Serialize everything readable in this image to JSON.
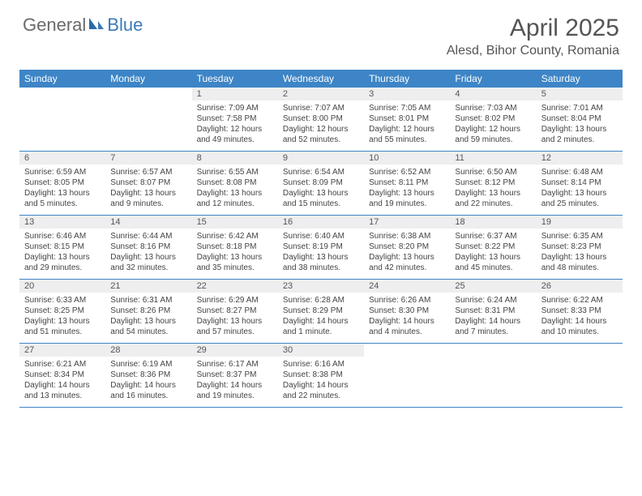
{
  "header": {
    "logo_general": "General",
    "logo_blue": "Blue",
    "month_title": "April 2025",
    "location": "Alesd, Bihor County, Romania"
  },
  "styling": {
    "header_bg": "#3d85c6",
    "header_text": "#ffffff",
    "daynum_bg": "#eeeeee",
    "text_color": "#444444",
    "logo_gray": "#6a6a6a",
    "logo_blue": "#3a7ab8",
    "row_border": "#3d85c6",
    "page_bg": "#ffffff",
    "weekday_fontsize": 12,
    "daynum_fontsize": 11,
    "body_fontsize": 10,
    "title_fontsize": 30,
    "location_fontsize": 16
  },
  "weekdays": [
    "Sunday",
    "Monday",
    "Tuesday",
    "Wednesday",
    "Thursday",
    "Friday",
    "Saturday"
  ],
  "weeks": [
    [
      {
        "num": "",
        "sunrise": "",
        "sunset": "",
        "daylight1": "",
        "daylight2": ""
      },
      {
        "num": "",
        "sunrise": "",
        "sunset": "",
        "daylight1": "",
        "daylight2": ""
      },
      {
        "num": "1",
        "sunrise": "Sunrise: 7:09 AM",
        "sunset": "Sunset: 7:58 PM",
        "daylight1": "Daylight: 12 hours",
        "daylight2": "and 49 minutes."
      },
      {
        "num": "2",
        "sunrise": "Sunrise: 7:07 AM",
        "sunset": "Sunset: 8:00 PM",
        "daylight1": "Daylight: 12 hours",
        "daylight2": "and 52 minutes."
      },
      {
        "num": "3",
        "sunrise": "Sunrise: 7:05 AM",
        "sunset": "Sunset: 8:01 PM",
        "daylight1": "Daylight: 12 hours",
        "daylight2": "and 55 minutes."
      },
      {
        "num": "4",
        "sunrise": "Sunrise: 7:03 AM",
        "sunset": "Sunset: 8:02 PM",
        "daylight1": "Daylight: 12 hours",
        "daylight2": "and 59 minutes."
      },
      {
        "num": "5",
        "sunrise": "Sunrise: 7:01 AM",
        "sunset": "Sunset: 8:04 PM",
        "daylight1": "Daylight: 13 hours",
        "daylight2": "and 2 minutes."
      }
    ],
    [
      {
        "num": "6",
        "sunrise": "Sunrise: 6:59 AM",
        "sunset": "Sunset: 8:05 PM",
        "daylight1": "Daylight: 13 hours",
        "daylight2": "and 5 minutes."
      },
      {
        "num": "7",
        "sunrise": "Sunrise: 6:57 AM",
        "sunset": "Sunset: 8:07 PM",
        "daylight1": "Daylight: 13 hours",
        "daylight2": "and 9 minutes."
      },
      {
        "num": "8",
        "sunrise": "Sunrise: 6:55 AM",
        "sunset": "Sunset: 8:08 PM",
        "daylight1": "Daylight: 13 hours",
        "daylight2": "and 12 minutes."
      },
      {
        "num": "9",
        "sunrise": "Sunrise: 6:54 AM",
        "sunset": "Sunset: 8:09 PM",
        "daylight1": "Daylight: 13 hours",
        "daylight2": "and 15 minutes."
      },
      {
        "num": "10",
        "sunrise": "Sunrise: 6:52 AM",
        "sunset": "Sunset: 8:11 PM",
        "daylight1": "Daylight: 13 hours",
        "daylight2": "and 19 minutes."
      },
      {
        "num": "11",
        "sunrise": "Sunrise: 6:50 AM",
        "sunset": "Sunset: 8:12 PM",
        "daylight1": "Daylight: 13 hours",
        "daylight2": "and 22 minutes."
      },
      {
        "num": "12",
        "sunrise": "Sunrise: 6:48 AM",
        "sunset": "Sunset: 8:14 PM",
        "daylight1": "Daylight: 13 hours",
        "daylight2": "and 25 minutes."
      }
    ],
    [
      {
        "num": "13",
        "sunrise": "Sunrise: 6:46 AM",
        "sunset": "Sunset: 8:15 PM",
        "daylight1": "Daylight: 13 hours",
        "daylight2": "and 29 minutes."
      },
      {
        "num": "14",
        "sunrise": "Sunrise: 6:44 AM",
        "sunset": "Sunset: 8:16 PM",
        "daylight1": "Daylight: 13 hours",
        "daylight2": "and 32 minutes."
      },
      {
        "num": "15",
        "sunrise": "Sunrise: 6:42 AM",
        "sunset": "Sunset: 8:18 PM",
        "daylight1": "Daylight: 13 hours",
        "daylight2": "and 35 minutes."
      },
      {
        "num": "16",
        "sunrise": "Sunrise: 6:40 AM",
        "sunset": "Sunset: 8:19 PM",
        "daylight1": "Daylight: 13 hours",
        "daylight2": "and 38 minutes."
      },
      {
        "num": "17",
        "sunrise": "Sunrise: 6:38 AM",
        "sunset": "Sunset: 8:20 PM",
        "daylight1": "Daylight: 13 hours",
        "daylight2": "and 42 minutes."
      },
      {
        "num": "18",
        "sunrise": "Sunrise: 6:37 AM",
        "sunset": "Sunset: 8:22 PM",
        "daylight1": "Daylight: 13 hours",
        "daylight2": "and 45 minutes."
      },
      {
        "num": "19",
        "sunrise": "Sunrise: 6:35 AM",
        "sunset": "Sunset: 8:23 PM",
        "daylight1": "Daylight: 13 hours",
        "daylight2": "and 48 minutes."
      }
    ],
    [
      {
        "num": "20",
        "sunrise": "Sunrise: 6:33 AM",
        "sunset": "Sunset: 8:25 PM",
        "daylight1": "Daylight: 13 hours",
        "daylight2": "and 51 minutes."
      },
      {
        "num": "21",
        "sunrise": "Sunrise: 6:31 AM",
        "sunset": "Sunset: 8:26 PM",
        "daylight1": "Daylight: 13 hours",
        "daylight2": "and 54 minutes."
      },
      {
        "num": "22",
        "sunrise": "Sunrise: 6:29 AM",
        "sunset": "Sunset: 8:27 PM",
        "daylight1": "Daylight: 13 hours",
        "daylight2": "and 57 minutes."
      },
      {
        "num": "23",
        "sunrise": "Sunrise: 6:28 AM",
        "sunset": "Sunset: 8:29 PM",
        "daylight1": "Daylight: 14 hours",
        "daylight2": "and 1 minute."
      },
      {
        "num": "24",
        "sunrise": "Sunrise: 6:26 AM",
        "sunset": "Sunset: 8:30 PM",
        "daylight1": "Daylight: 14 hours",
        "daylight2": "and 4 minutes."
      },
      {
        "num": "25",
        "sunrise": "Sunrise: 6:24 AM",
        "sunset": "Sunset: 8:31 PM",
        "daylight1": "Daylight: 14 hours",
        "daylight2": "and 7 minutes."
      },
      {
        "num": "26",
        "sunrise": "Sunrise: 6:22 AM",
        "sunset": "Sunset: 8:33 PM",
        "daylight1": "Daylight: 14 hours",
        "daylight2": "and 10 minutes."
      }
    ],
    [
      {
        "num": "27",
        "sunrise": "Sunrise: 6:21 AM",
        "sunset": "Sunset: 8:34 PM",
        "daylight1": "Daylight: 14 hours",
        "daylight2": "and 13 minutes."
      },
      {
        "num": "28",
        "sunrise": "Sunrise: 6:19 AM",
        "sunset": "Sunset: 8:36 PM",
        "daylight1": "Daylight: 14 hours",
        "daylight2": "and 16 minutes."
      },
      {
        "num": "29",
        "sunrise": "Sunrise: 6:17 AM",
        "sunset": "Sunset: 8:37 PM",
        "daylight1": "Daylight: 14 hours",
        "daylight2": "and 19 minutes."
      },
      {
        "num": "30",
        "sunrise": "Sunrise: 6:16 AM",
        "sunset": "Sunset: 8:38 PM",
        "daylight1": "Daylight: 14 hours",
        "daylight2": "and 22 minutes."
      },
      {
        "num": "",
        "sunrise": "",
        "sunset": "",
        "daylight1": "",
        "daylight2": ""
      },
      {
        "num": "",
        "sunrise": "",
        "sunset": "",
        "daylight1": "",
        "daylight2": ""
      },
      {
        "num": "",
        "sunrise": "",
        "sunset": "",
        "daylight1": "",
        "daylight2": ""
      }
    ]
  ]
}
